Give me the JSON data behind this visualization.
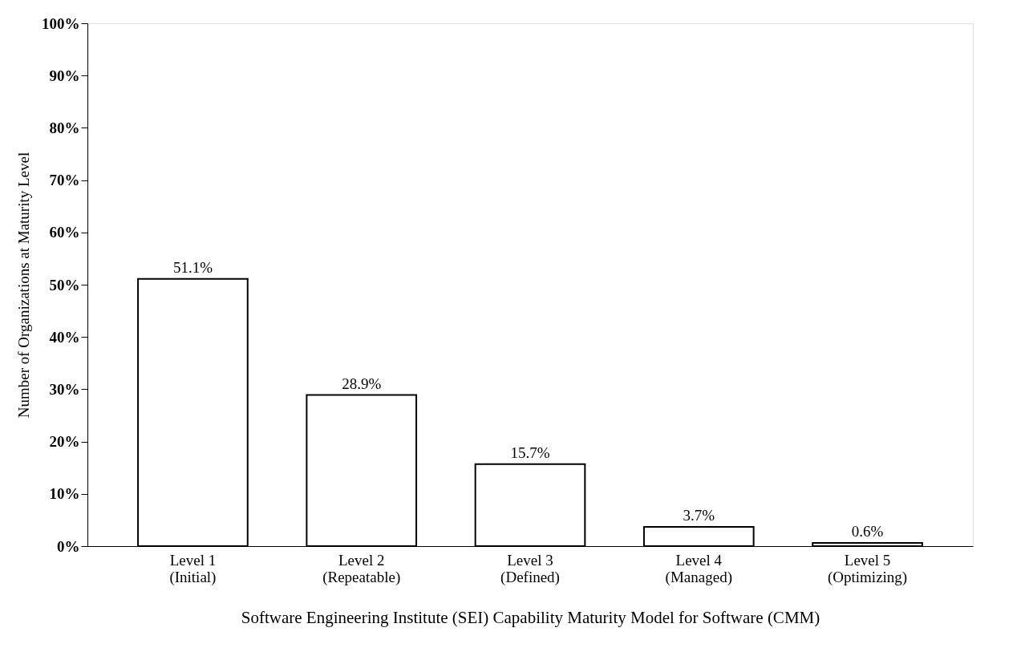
{
  "chart_data": {
    "type": "bar",
    "categories": [
      "Level 1\n(Initial)",
      "Level 2\n(Repeatable)",
      "Level  3\n(Defined)",
      "Level 4\n(Managed)",
      "Level 5\n(Optimizing)"
    ],
    "values": [
      51.1,
      28.9,
      15.7,
      3.7,
      0.6
    ],
    "value_labels": [
      "51.1%",
      "28.9%",
      "15.7%",
      "3.7%",
      "0.6%"
    ],
    "color": "#ffffff",
    "xlabel": "Software Engineering Institute (SEI) Capability Maturity Model for Software (CMM)",
    "ylabel": "Number of Organizations at Maturity Level",
    "ylim": [
      0,
      100
    ],
    "yticks": [
      {
        "value": 0,
        "label": "0%"
      },
      {
        "value": 10,
        "label": "10%"
      },
      {
        "value": 20,
        "label": "20%"
      },
      {
        "value": 30,
        "label": "30%"
      },
      {
        "value": 40,
        "label": "40%"
      },
      {
        "value": 50,
        "label": "50%"
      },
      {
        "value": 60,
        "label": "60%"
      },
      {
        "value": 70,
        "label": "70%"
      },
      {
        "value": 80,
        "label": "80%"
      },
      {
        "value": 90,
        "label": "90%"
      },
      {
        "value": 100,
        "label": "100%"
      }
    ],
    "grid": false
  }
}
